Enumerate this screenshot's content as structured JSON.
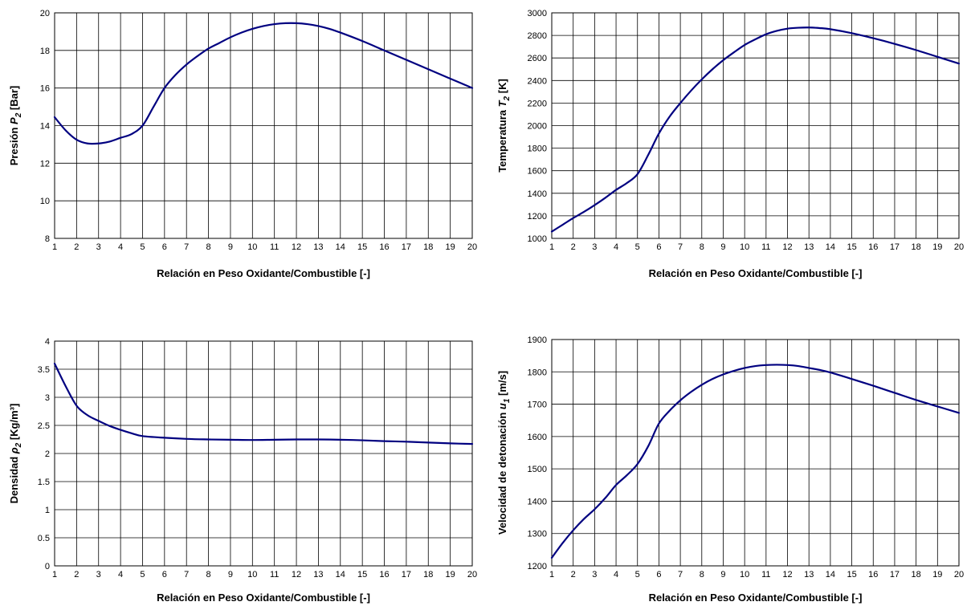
{
  "line_color": "#000080",
  "chart_data": [
    {
      "type": "line",
      "xlabel": "Relación en Peso Oxidante/Combustible [-]",
      "ylabel": {
        "prefix": "Presión ",
        "var": "P",
        "sub": "2",
        "suffix": " [Bar]"
      },
      "xlim": [
        1,
        20
      ],
      "ylim": [
        8,
        20
      ],
      "xticks": [
        1,
        2,
        3,
        4,
        5,
        6,
        7,
        8,
        9,
        10,
        11,
        12,
        13,
        14,
        15,
        16,
        17,
        18,
        19,
        20
      ],
      "yticks": [
        8,
        10,
        12,
        14,
        16,
        18,
        20
      ],
      "grid": true,
      "x": [
        1,
        1.5,
        2,
        2.5,
        3,
        3.5,
        4,
        4.5,
        5,
        5.5,
        6,
        6.5,
        7,
        7.5,
        8,
        8.5,
        9,
        9.5,
        10,
        10.5,
        11,
        11.5,
        12,
        12.5,
        13,
        13.5,
        14,
        15,
        16,
        17,
        18,
        19,
        20
      ],
      "y": [
        14.45,
        13.75,
        13.25,
        13.05,
        13.05,
        13.15,
        13.35,
        13.55,
        14.0,
        15.0,
        16.0,
        16.7,
        17.25,
        17.7,
        18.1,
        18.4,
        18.7,
        18.95,
        19.15,
        19.3,
        19.4,
        19.45,
        19.45,
        19.4,
        19.3,
        19.15,
        18.95,
        18.5,
        18.0,
        17.5,
        17.0,
        16.5,
        16.0
      ]
    },
    {
      "type": "line",
      "xlabel": "Relación en Peso Oxidante/Combustible [-]",
      "ylabel": {
        "prefix": "Temperatura ",
        "var": "T",
        "sub": "2",
        "suffix": " [K]"
      },
      "xlim": [
        1,
        20
      ],
      "ylim": [
        1000,
        3000
      ],
      "xticks": [
        1,
        2,
        3,
        4,
        5,
        6,
        7,
        8,
        9,
        10,
        11,
        12,
        13,
        14,
        15,
        16,
        17,
        18,
        19,
        20
      ],
      "yticks": [
        1000,
        1200,
        1400,
        1600,
        1800,
        2000,
        2200,
        2400,
        2600,
        2800,
        3000
      ],
      "grid": true,
      "x": [
        1,
        1.5,
        2,
        2.5,
        3,
        3.5,
        4,
        4.5,
        5,
        5.5,
        6,
        6.5,
        7,
        7.5,
        8,
        8.5,
        9,
        9.5,
        10,
        10.5,
        11,
        11.5,
        12,
        12.5,
        13,
        13.5,
        14,
        15,
        16,
        17,
        18,
        19,
        20
      ],
      "y": [
        1060,
        1120,
        1180,
        1235,
        1295,
        1360,
        1430,
        1490,
        1570,
        1740,
        1930,
        2080,
        2200,
        2310,
        2410,
        2500,
        2580,
        2650,
        2715,
        2765,
        2810,
        2840,
        2860,
        2868,
        2870,
        2865,
        2855,
        2820,
        2775,
        2725,
        2670,
        2610,
        2550
      ]
    },
    {
      "type": "line",
      "xlabel": "Relación en Peso Oxidante/Combustible [-]",
      "ylabel": {
        "prefix": "Densidad ",
        "var": "ρ",
        "sub": "2",
        "suffix": " [Kg/m³]"
      },
      "xlim": [
        1,
        20
      ],
      "ylim": [
        0,
        4
      ],
      "xticks": [
        1,
        2,
        3,
        4,
        5,
        6,
        7,
        8,
        9,
        10,
        11,
        12,
        13,
        14,
        15,
        16,
        17,
        18,
        19,
        20
      ],
      "yticks": [
        0,
        0.5,
        1,
        1.5,
        2,
        2.5,
        3,
        3.5,
        4
      ],
      "grid": true,
      "x": [
        1,
        1.5,
        2,
        2.5,
        3,
        3.5,
        4,
        4.5,
        5,
        6,
        7,
        8,
        9,
        10,
        11,
        12,
        13,
        14,
        15,
        16,
        17,
        18,
        19,
        20
      ],
      "y": [
        3.6,
        3.2,
        2.85,
        2.68,
        2.58,
        2.49,
        2.42,
        2.36,
        2.31,
        2.28,
        2.26,
        2.25,
        2.245,
        2.24,
        2.245,
        2.25,
        2.25,
        2.245,
        2.235,
        2.22,
        2.21,
        2.195,
        2.18,
        2.17
      ]
    },
    {
      "type": "line",
      "xlabel": "Relación en Peso Oxidante/Combustible [-]",
      "ylabel": {
        "prefix": "Velocidad de detonación ",
        "var": "u",
        "sub": "1",
        "suffix": " [m/s]"
      },
      "xlim": [
        1,
        20
      ],
      "ylim": [
        1200,
        1900
      ],
      "xticks": [
        1,
        2,
        3,
        4,
        5,
        6,
        7,
        8,
        9,
        10,
        11,
        12,
        13,
        14,
        15,
        16,
        17,
        18,
        19,
        20
      ],
      "yticks": [
        1200,
        1300,
        1400,
        1500,
        1600,
        1700,
        1800,
        1900
      ],
      "grid": true,
      "x": [
        1,
        1.5,
        2,
        2.5,
        3,
        3.5,
        4,
        4.5,
        5,
        5.5,
        6,
        6.5,
        7,
        7.5,
        8,
        8.5,
        9,
        9.5,
        10,
        10.5,
        11,
        11.5,
        12,
        12.5,
        13,
        13.5,
        14,
        15,
        16,
        17,
        18,
        19,
        20
      ],
      "y": [
        1225,
        1270,
        1310,
        1345,
        1375,
        1410,
        1450,
        1480,
        1515,
        1570,
        1640,
        1680,
        1712,
        1738,
        1760,
        1778,
        1792,
        1803,
        1812,
        1818,
        1821,
        1822,
        1821,
        1818,
        1812,
        1806,
        1798,
        1778,
        1757,
        1735,
        1713,
        1693,
        1673
      ]
    }
  ]
}
